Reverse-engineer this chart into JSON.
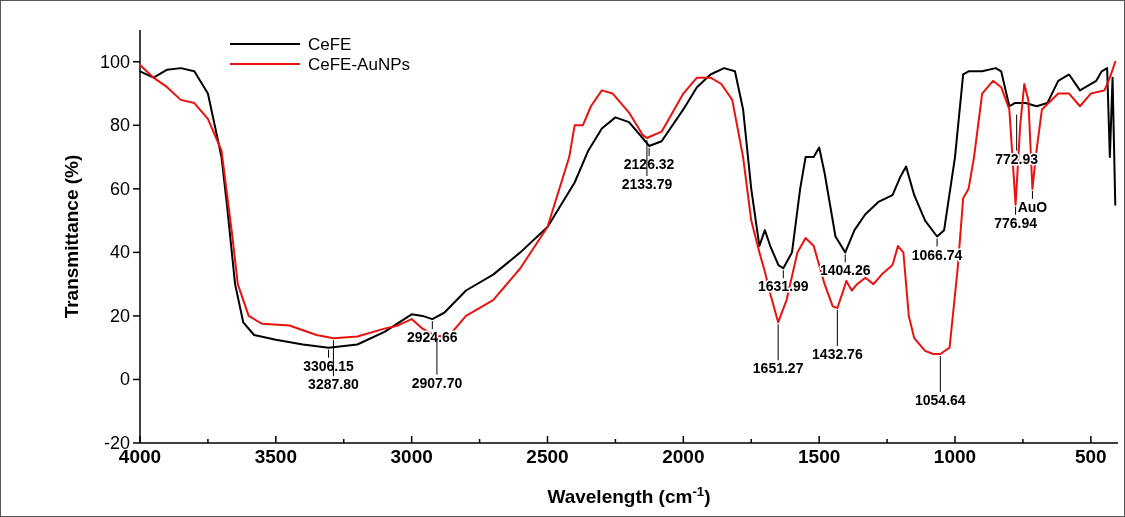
{
  "chart_data": {
    "type": "line",
    "xlabel": "Wavelength (cm$^{-1}$)",
    "ylabel": "Transmittance (%)",
    "xlim": [
      4000,
      400
    ],
    "ylim": [
      -20,
      110
    ],
    "xticks": [
      4000,
      {
        "value": 3750,
        "label": null
      },
      3500,
      {
        "value": 3250,
        "label": null
      },
      3000,
      {
        "value": 2750,
        "label": null
      },
      2500,
      {
        "value": 2250,
        "label": null
      },
      2000,
      {
        "value": 1750,
        "label": null
      },
      1500,
      {
        "value": 1250,
        "label": null
      },
      1000,
      {
        "value": 750,
        "label": null
      },
      500
    ],
    "yticks": [
      -20,
      0,
      20,
      40,
      60,
      80,
      100
    ],
    "grid": false,
    "legend": "top left",
    "marker": "none",
    "line_style": "solid",
    "series": [
      {
        "name": "CeFE",
        "color": "#000000",
        "x": [
          4000,
          3950,
          3900,
          3850,
          3800,
          3750,
          3700,
          3680,
          3650,
          3620,
          3580,
          3500,
          3400,
          3306,
          3200,
          3100,
          3000,
          2960,
          2924,
          2880,
          2800,
          2700,
          2600,
          2500,
          2400,
          2350,
          2300,
          2250,
          2200,
          2150,
          2126,
          2080,
          2000,
          1950,
          1900,
          1850,
          1810,
          1780,
          1750,
          1720,
          1700,
          1680,
          1650,
          1632,
          1600,
          1570,
          1550,
          1520,
          1500,
          1480,
          1440,
          1404,
          1370,
          1330,
          1280,
          1230,
          1200,
          1180,
          1150,
          1110,
          1066,
          1040,
          1000,
          970,
          950,
          900,
          850,
          830,
          800,
          780,
          740,
          700,
          660,
          620,
          580,
          540,
          480,
          460,
          440,
          430,
          420,
          410
        ],
        "values": [
          97,
          95,
          97.5,
          98,
          97,
          90,
          70,
          55,
          30,
          18,
          14,
          12.5,
          11,
          10,
          11,
          15,
          20.5,
          20,
          19,
          21,
          28,
          33,
          40,
          48,
          62,
          72,
          79,
          82.5,
          81,
          76,
          73.5,
          75,
          85,
          92,
          96,
          98,
          97,
          85,
          60,
          42,
          47,
          42,
          36,
          35,
          40,
          60,
          70,
          70,
          73,
          65,
          45,
          40,
          47,
          52,
          56,
          58,
          64,
          67,
          58,
          50,
          45,
          47,
          70,
          96,
          97,
          97,
          98,
          97,
          86,
          87,
          87,
          86,
          87,
          94,
          96,
          91,
          94,
          97,
          98,
          70,
          95,
          55
        ]
      },
      {
        "name": "CeFE-AuNPs",
        "color": "#e8130f",
        "x": [
          4000,
          3950,
          3900,
          3850,
          3800,
          3750,
          3700,
          3660,
          3640,
          3600,
          3550,
          3450,
          3350,
          3288,
          3200,
          3100,
          3050,
          3000,
          2960,
          2907,
          2860,
          2800,
          2700,
          2600,
          2500,
          2420,
          2400,
          2370,
          2340,
          2300,
          2260,
          2200,
          2150,
          2134,
          2080,
          2000,
          1950,
          1900,
          1860,
          1820,
          1780,
          1750,
          1720,
          1700,
          1680,
          1651,
          1620,
          1580,
          1550,
          1520,
          1480,
          1450,
          1433,
          1415,
          1400,
          1380,
          1360,
          1330,
          1300,
          1270,
          1230,
          1210,
          1190,
          1170,
          1150,
          1110,
          1080,
          1054,
          1020,
          990,
          970,
          950,
          930,
          900,
          860,
          830,
          800,
          777,
          760,
          745,
          730,
          715,
          700,
          680,
          620,
          580,
          540,
          500,
          450,
          430,
          410
        ],
        "values": [
          99,
          95,
          92,
          88,
          87,
          82,
          72,
          45,
          30,
          20,
          17.5,
          17,
          14,
          13,
          13.5,
          16,
          17,
          19,
          16,
          13.5,
          14,
          20,
          25,
          35,
          48,
          70,
          80,
          80,
          86,
          91,
          90,
          84,
          77,
          76,
          78,
          90,
          95,
          95,
          93,
          88,
          70,
          50,
          40,
          34,
          27,
          18,
          25,
          40,
          44.5,
          42,
          30,
          23,
          22.5,
          27,
          31,
          28,
          30,
          32,
          30,
          33,
          36,
          42,
          40,
          20,
          13,
          9,
          8,
          8,
          10,
          35,
          57,
          60,
          70,
          90,
          94,
          92,
          85,
          55,
          80,
          93,
          88,
          60,
          72,
          85,
          90,
          90,
          86,
          90,
          91,
          95,
          100
        ]
      }
    ],
    "annotations": [
      {
        "text": "3306.15",
        "x": 3306,
        "y": 10
      },
      {
        "text": "3287.80",
        "x": 3288,
        "y": 13
      },
      {
        "text": "2924.66",
        "x": 2924,
        "y": 19
      },
      {
        "text": "2907.70",
        "x": 2907,
        "y": 13.5
      },
      {
        "text": "2126.32",
        "x": 2126,
        "y": 73.5
      },
      {
        "text": "2133.79",
        "x": 2134,
        "y": 76
      },
      {
        "text": "1631.99",
        "x": 1632,
        "y": 35
      },
      {
        "text": "1651.27",
        "x": 1651,
        "y": 18
      },
      {
        "text": "1404.26",
        "x": 1404,
        "y": 40
      },
      {
        "text": "1432.76",
        "x": 1433,
        "y": 22.5
      },
      {
        "text": "1066.74",
        "x": 1066,
        "y": 45
      },
      {
        "text": "1054.64",
        "x": 1054,
        "y": 8
      },
      {
        "text": "776.94",
        "x": 777,
        "y": 55
      },
      {
        "text": "772.93",
        "x": 773,
        "y": 84
      },
      {
        "text": "AuO",
        "x": 715,
        "y": 60
      }
    ]
  }
}
